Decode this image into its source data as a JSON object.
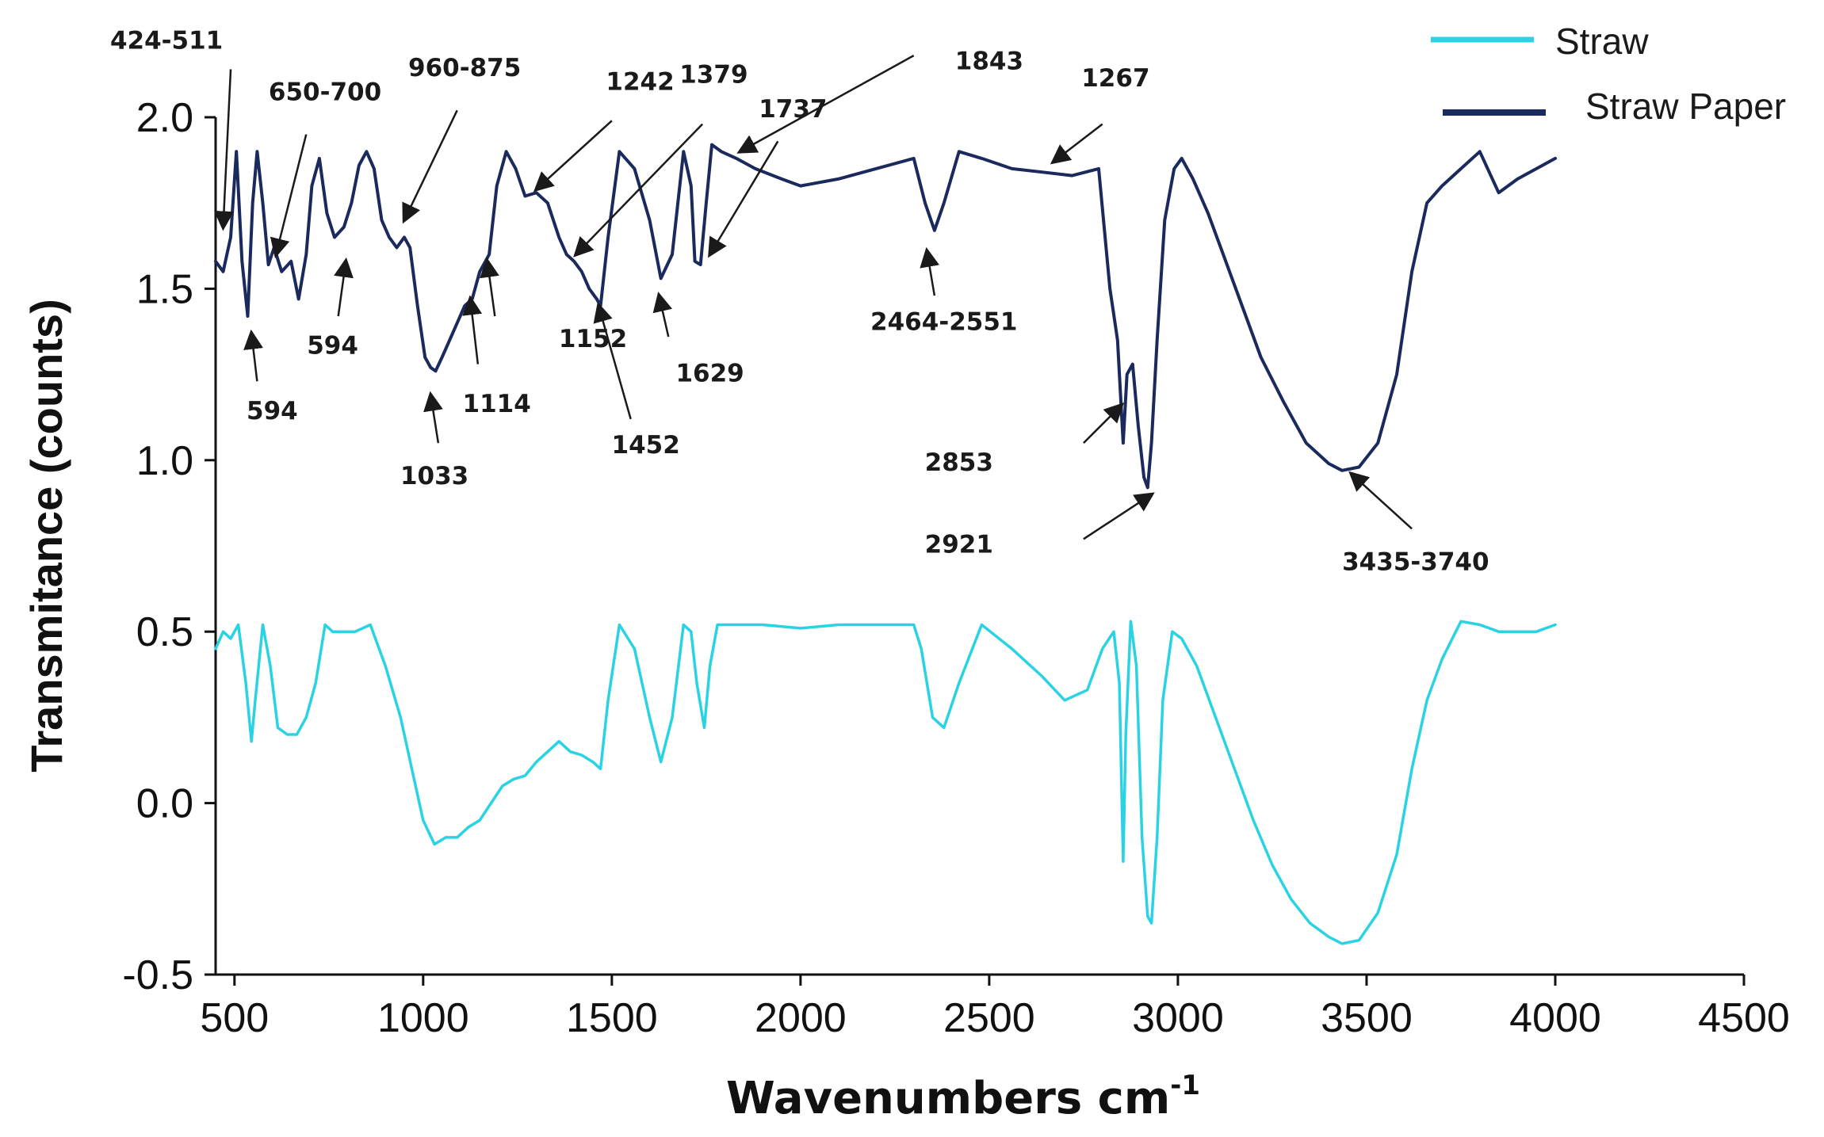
{
  "chart_data": {
    "type": "line",
    "title": "",
    "xlabel": "Wavenumbers cm",
    "xlabel_superscript": "-1",
    "ylabel": "Transmitance  (counts)",
    "xlim": [
      450,
      4500
    ],
    "ylim": [
      -0.5,
      2.0
    ],
    "xticks": [
      "500",
      "1000",
      "1500",
      "2000",
      "2500",
      "3000",
      "3500",
      "4000",
      "4500"
    ],
    "yticks": [
      "-0.5",
      "0.0",
      "0.5",
      "1.0",
      "1.5",
      "2.0"
    ],
    "legend_position": "top-right",
    "series": [
      {
        "name": "Straw",
        "color": "#2ad3e3",
        "x": [
          450,
          470,
          490,
          510,
          530,
          545,
          555,
          575,
          595,
          615,
          640,
          665,
          690,
          715,
          740,
          760,
          790,
          820,
          860,
          900,
          940,
          970,
          1000,
          1030,
          1060,
          1090,
          1120,
          1150,
          1180,
          1210,
          1240,
          1270,
          1300,
          1330,
          1360,
          1390,
          1420,
          1450,
          1470,
          1490,
          1520,
          1560,
          1600,
          1630,
          1660,
          1690,
          1710,
          1725,
          1745,
          1760,
          1780,
          1820,
          1900,
          2000,
          2100,
          2200,
          2300,
          2320,
          2350,
          2380,
          2420,
          2480,
          2560,
          2640,
          2700,
          2760,
          2800,
          2830,
          2845,
          2855,
          2862,
          2875,
          2890,
          2905,
          2920,
          2930,
          2945,
          2960,
          2985,
          3010,
          3050,
          3100,
          3150,
          3200,
          3250,
          3300,
          3350,
          3400,
          3435,
          3480,
          3530,
          3580,
          3620,
          3660,
          3700,
          3750,
          3800,
          3850,
          3900,
          3950,
          4000
        ],
        "y": [
          0.45,
          0.5,
          0.48,
          0.52,
          0.35,
          0.18,
          0.3,
          0.52,
          0.4,
          0.22,
          0.2,
          0.2,
          0.25,
          0.35,
          0.52,
          0.5,
          0.5,
          0.5,
          0.52,
          0.4,
          0.25,
          0.1,
          -0.05,
          -0.12,
          -0.1,
          -0.1,
          -0.07,
          -0.05,
          0.0,
          0.05,
          0.07,
          0.08,
          0.12,
          0.15,
          0.18,
          0.15,
          0.14,
          0.12,
          0.1,
          0.3,
          0.52,
          0.45,
          0.25,
          0.12,
          0.25,
          0.52,
          0.5,
          0.35,
          0.22,
          0.4,
          0.52,
          0.52,
          0.52,
          0.51,
          0.52,
          0.52,
          0.52,
          0.45,
          0.25,
          0.22,
          0.35,
          0.52,
          0.45,
          0.37,
          0.3,
          0.33,
          0.45,
          0.5,
          0.35,
          -0.17,
          0.2,
          0.53,
          0.4,
          -0.1,
          -0.33,
          -0.35,
          -0.1,
          0.3,
          0.5,
          0.48,
          0.4,
          0.25,
          0.1,
          -0.05,
          -0.18,
          -0.28,
          -0.35,
          -0.39,
          -0.41,
          -0.4,
          -0.32,
          -0.15,
          0.1,
          0.3,
          0.42,
          0.53,
          0.52,
          0.5,
          0.5,
          0.5,
          0.52
        ]
      },
      {
        "name": "Straw Paper",
        "color": "#1a2a5c",
        "x": [
          450,
          470,
          490,
          505,
          520,
          535,
          548,
          560,
          575,
          590,
          605,
          625,
          650,
          670,
          690,
          705,
          725,
          745,
          765,
          790,
          810,
          830,
          850,
          870,
          890,
          910,
          930,
          950,
          965,
          985,
          1005,
          1020,
          1033,
          1050,
          1070,
          1090,
          1110,
          1130,
          1150,
          1165,
          1175,
          1195,
          1220,
          1245,
          1270,
          1300,
          1330,
          1360,
          1380,
          1400,
          1420,
          1440,
          1460,
          1470,
          1490,
          1520,
          1560,
          1600,
          1630,
          1660,
          1690,
          1710,
          1720,
          1735,
          1750,
          1765,
          1790,
          1830,
          1880,
          1950,
          2000,
          2100,
          2200,
          2300,
          2330,
          2355,
          2380,
          2420,
          2480,
          2560,
          2640,
          2720,
          2790,
          2820,
          2840,
          2855,
          2865,
          2880,
          2895,
          2910,
          2920,
          2930,
          2945,
          2965,
          2990,
          3010,
          3040,
          3080,
          3120,
          3170,
          3220,
          3280,
          3340,
          3400,
          3435,
          3480,
          3530,
          3580,
          3620,
          3660,
          3700,
          3750,
          3800,
          3850,
          3900,
          3950,
          4000
        ],
        "y": [
          1.58,
          1.55,
          1.65,
          1.9,
          1.58,
          1.42,
          1.75,
          1.9,
          1.75,
          1.57,
          1.62,
          1.55,
          1.58,
          1.47,
          1.6,
          1.8,
          1.88,
          1.72,
          1.65,
          1.68,
          1.75,
          1.86,
          1.9,
          1.85,
          1.7,
          1.65,
          1.62,
          1.65,
          1.62,
          1.45,
          1.3,
          1.27,
          1.26,
          1.3,
          1.35,
          1.4,
          1.45,
          1.47,
          1.55,
          1.58,
          1.6,
          1.8,
          1.9,
          1.85,
          1.77,
          1.78,
          1.75,
          1.65,
          1.6,
          1.58,
          1.55,
          1.5,
          1.47,
          1.45,
          1.65,
          1.9,
          1.85,
          1.7,
          1.53,
          1.6,
          1.9,
          1.8,
          1.58,
          1.57,
          1.75,
          1.92,
          1.9,
          1.88,
          1.85,
          1.82,
          1.8,
          1.82,
          1.85,
          1.88,
          1.75,
          1.67,
          1.75,
          1.9,
          1.88,
          1.85,
          1.84,
          1.83,
          1.85,
          1.5,
          1.35,
          1.05,
          1.25,
          1.28,
          1.1,
          0.95,
          0.92,
          1.05,
          1.35,
          1.7,
          1.85,
          1.88,
          1.82,
          1.72,
          1.6,
          1.45,
          1.3,
          1.17,
          1.05,
          0.99,
          0.97,
          0.98,
          1.05,
          1.25,
          1.55,
          1.75,
          1.8,
          1.85,
          1.9,
          1.78,
          1.82,
          1.85,
          1.88
        ]
      }
    ],
    "annotations": [
      {
        "label": "424-511",
        "tx": 490,
        "ty": 1.89,
        "target_x": 470,
        "target_y": 1.68,
        "label_x": 320,
        "label_y": 2.2,
        "from_x": 490,
        "from_y": 2.14
      },
      {
        "label": "650-700",
        "tx": 640,
        "ty": 1.74,
        "target_x": 610,
        "target_y": 1.6,
        "label_x": 740,
        "label_y": 2.05,
        "from_x": 690,
        "from_y": 1.95
      },
      {
        "label": "960-875",
        "tx": 960,
        "ty": 1.64,
        "target_x": 950,
        "target_y": 1.7,
        "label_x": 1110,
        "label_y": 2.12,
        "from_x": 1090,
        "from_y": 2.02
      },
      {
        "label": "1242",
        "tx": 1300,
        "ty": 1.88,
        "target_x": 1300,
        "target_y": 1.79,
        "label_x": 1575,
        "label_y": 2.08,
        "from_x": 1500,
        "from_y": 1.99
      },
      {
        "label": "1379",
        "tx": 1420,
        "ty": 1.68,
        "target_x": 1405,
        "target_y": 1.6,
        "label_x": 1770,
        "label_y": 2.1,
        "from_x": 1740,
        "from_y": 1.98
      },
      {
        "label": "1737",
        "tx": 1760,
        "ty": 1.72,
        "target_x": 1760,
        "target_y": 1.6,
        "label_x": 1980,
        "label_y": 2.0,
        "from_x": 1940,
        "from_y": 1.93
      },
      {
        "label": "1843",
        "tx": 1840,
        "ty": 1.98,
        "target_x": 1840,
        "target_y": 1.9,
        "label_x": 2500,
        "label_y": 2.14,
        "from_x": 2300,
        "from_y": 2.18
      },
      {
        "label": "1267",
        "tx": 2700,
        "ty": 1.9,
        "target_x": 2670,
        "target_y": 1.87,
        "label_x": 2835,
        "label_y": 2.09,
        "from_x": 2800,
        "from_y": 1.98
      },
      {
        "label": "594",
        "tx": 580,
        "ty": 1.3,
        "target_x": 545,
        "target_y": 1.37,
        "label_x": 600,
        "label_y": 1.12,
        "from_x": 560,
        "from_y": 1.23
      },
      {
        "label": "594",
        "tx": 760,
        "ty": 1.5,
        "target_x": 795,
        "target_y": 1.58,
        "label_x": 760,
        "label_y": 1.31,
        "from_x": 775,
        "from_y": 1.42
      },
      {
        "label": "1033",
        "tx": 1030,
        "ty": 1.2,
        "target_x": 1020,
        "target_y": 1.19,
        "label_x": 1030,
        "label_y": 0.93,
        "from_x": 1040,
        "from_y": 1.05
      },
      {
        "label": "1114",
        "tx": 1140,
        "ty": 1.38,
        "target_x": 1125,
        "target_y": 1.47,
        "label_x": 1195,
        "label_y": 1.14,
        "from_x": 1145,
        "from_y": 1.28
      },
      {
        "label": "1152",
        "tx": 1180,
        "ty": 1.52,
        "target_x": 1170,
        "target_y": 1.58,
        "label_x": 1450,
        "label_y": 1.33,
        "from_x": 1190,
        "from_y": 1.42
      },
      {
        "label": "1452",
        "tx": 1480,
        "ty": 1.4,
        "target_x": 1465,
        "target_y": 1.45,
        "label_x": 1590,
        "label_y": 1.02,
        "from_x": 1550,
        "from_y": 1.12
      },
      {
        "label": "1629",
        "tx": 1640,
        "ty": 1.42,
        "target_x": 1625,
        "target_y": 1.48,
        "label_x": 1760,
        "label_y": 1.23,
        "from_x": 1650,
        "from_y": 1.36
      },
      {
        "label": "2464-2551",
        "tx": 2350,
        "ty": 1.55,
        "target_x": 2335,
        "target_y": 1.61,
        "label_x": 2380,
        "label_y": 1.38,
        "from_x": 2355,
        "from_y": 1.48
      },
      {
        "label": "2853",
        "tx": 2840,
        "ty": 1.12,
        "target_x": 2850,
        "target_y": 1.16,
        "label_x": 2420,
        "label_y": 0.97,
        "from_x": 2750,
        "from_y": 1.05
      },
      {
        "label": "2921",
        "tx": 2920,
        "ty": 0.9,
        "target_x": 2930,
        "target_y": 0.9,
        "label_x": 2420,
        "label_y": 0.73,
        "from_x": 2750,
        "from_y": 0.77
      },
      {
        "label": "3435-3740",
        "tx": 3500,
        "ty": 0.96,
        "target_x": 3460,
        "target_y": 0.96,
        "label_x": 3630,
        "label_y": 0.68,
        "from_x": 3620,
        "from_y": 0.8
      }
    ]
  }
}
